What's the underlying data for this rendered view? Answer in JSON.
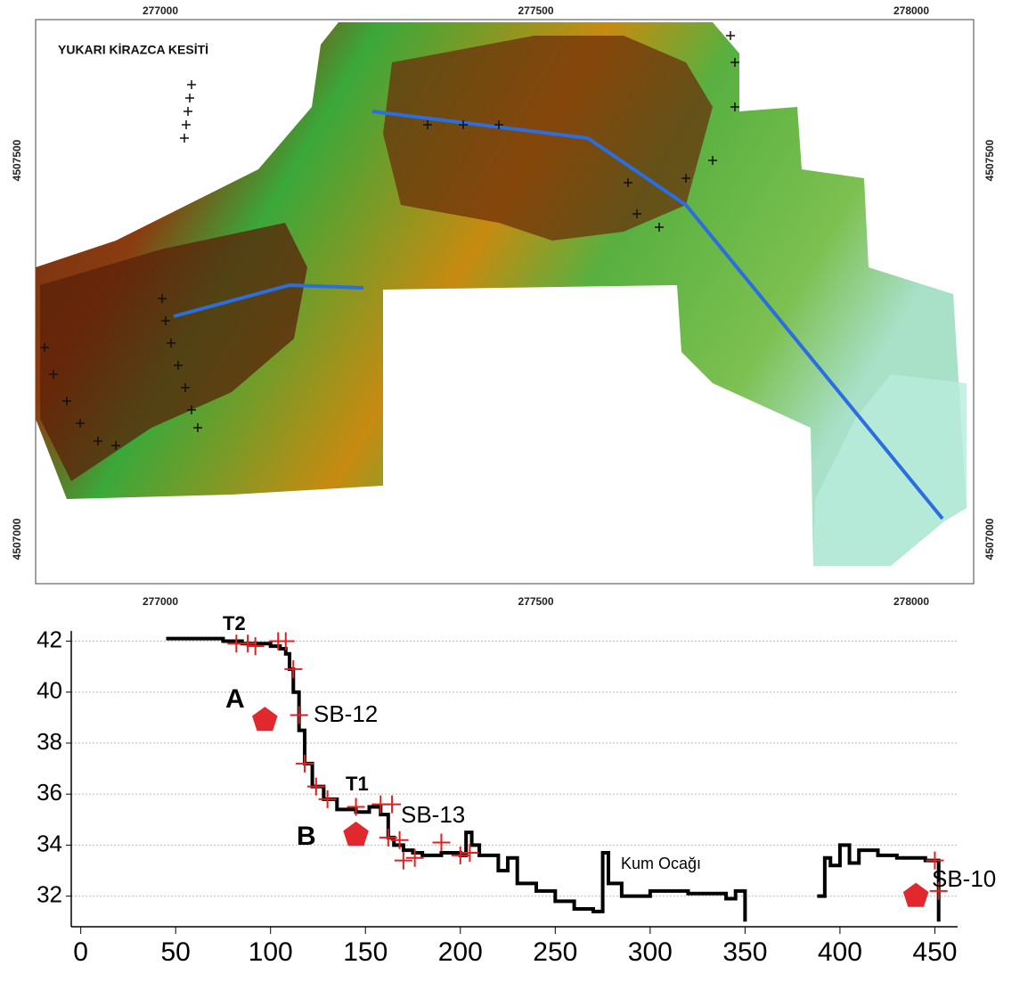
{
  "map": {
    "title": "YUKARI KİRAZCA KESİTİ",
    "xticks": [
      277000,
      277500,
      278000
    ],
    "yticks": [
      4507500,
      4507000
    ]
  },
  "chart_data": {
    "type": "line",
    "x": [
      45,
      60,
      75,
      85,
      95,
      100,
      105,
      108,
      110,
      112,
      115,
      118,
      122,
      128,
      135,
      145,
      152,
      158,
      162,
      165,
      170,
      175,
      180,
      190,
      200,
      203,
      206,
      210,
      220,
      225,
      230,
      240,
      250,
      260,
      270,
      275,
      278,
      285,
      300,
      320,
      340,
      345,
      350,
      null,
      388,
      392,
      395,
      400,
      405,
      410,
      420,
      430,
      445,
      450,
      452
    ],
    "series": [
      {
        "color": "#000000",
        "values": [
          42.1,
          42.1,
          42,
          41.9,
          41.9,
          41.8,
          41.7,
          41.5,
          40.9,
          40,
          38.5,
          37.2,
          36.3,
          35.8,
          35.4,
          35.3,
          35.5,
          35.2,
          34.3,
          34,
          33.8,
          33.7,
          33.6,
          33.7,
          33.6,
          34.5,
          34,
          33.6,
          33,
          33.5,
          32.5,
          32.2,
          31.8,
          31.5,
          31.4,
          33.7,
          32.5,
          32,
          32.2,
          32.1,
          31.9,
          32.2,
          31,
          null,
          32,
          33.5,
          33.2,
          34,
          33.3,
          33.8,
          33.6,
          33.5,
          33.4,
          33.4,
          31
        ]
      }
    ],
    "crosses": {
      "color": "#e02020",
      "x": [
        82,
        88,
        92,
        104,
        108,
        112,
        115,
        118,
        124,
        130,
        145,
        158,
        164,
        162,
        168,
        170,
        176,
        190,
        200,
        205,
        450,
        452
      ],
      "y": [
        41.9,
        41.9,
        41.8,
        42,
        42,
        40.9,
        39.1,
        37.2,
        36.3,
        35.8,
        35.5,
        35.6,
        35.6,
        34.3,
        34.2,
        33.4,
        33.5,
        34.1,
        33.6,
        33.7,
        33.4,
        32.2
      ]
    },
    "pentagons": {
      "color": "#e0282e",
      "x": [
        97,
        145,
        440
      ],
      "y": [
        38.9,
        34.4,
        32
      ]
    },
    "annotations": [
      "T2",
      "A",
      "SB-12",
      "T1",
      "B",
      "SB-13",
      "Kum Ocağı",
      "SB-10"
    ],
    "xlim": [
      -5,
      462
    ],
    "ylim": [
      30.8,
      42.4
    ],
    "xticks": [
      0,
      50,
      100,
      150,
      200,
      250,
      300,
      350,
      400,
      450
    ],
    "yticks": [
      32,
      34,
      36,
      38,
      40,
      42
    ],
    "grid": true
  }
}
